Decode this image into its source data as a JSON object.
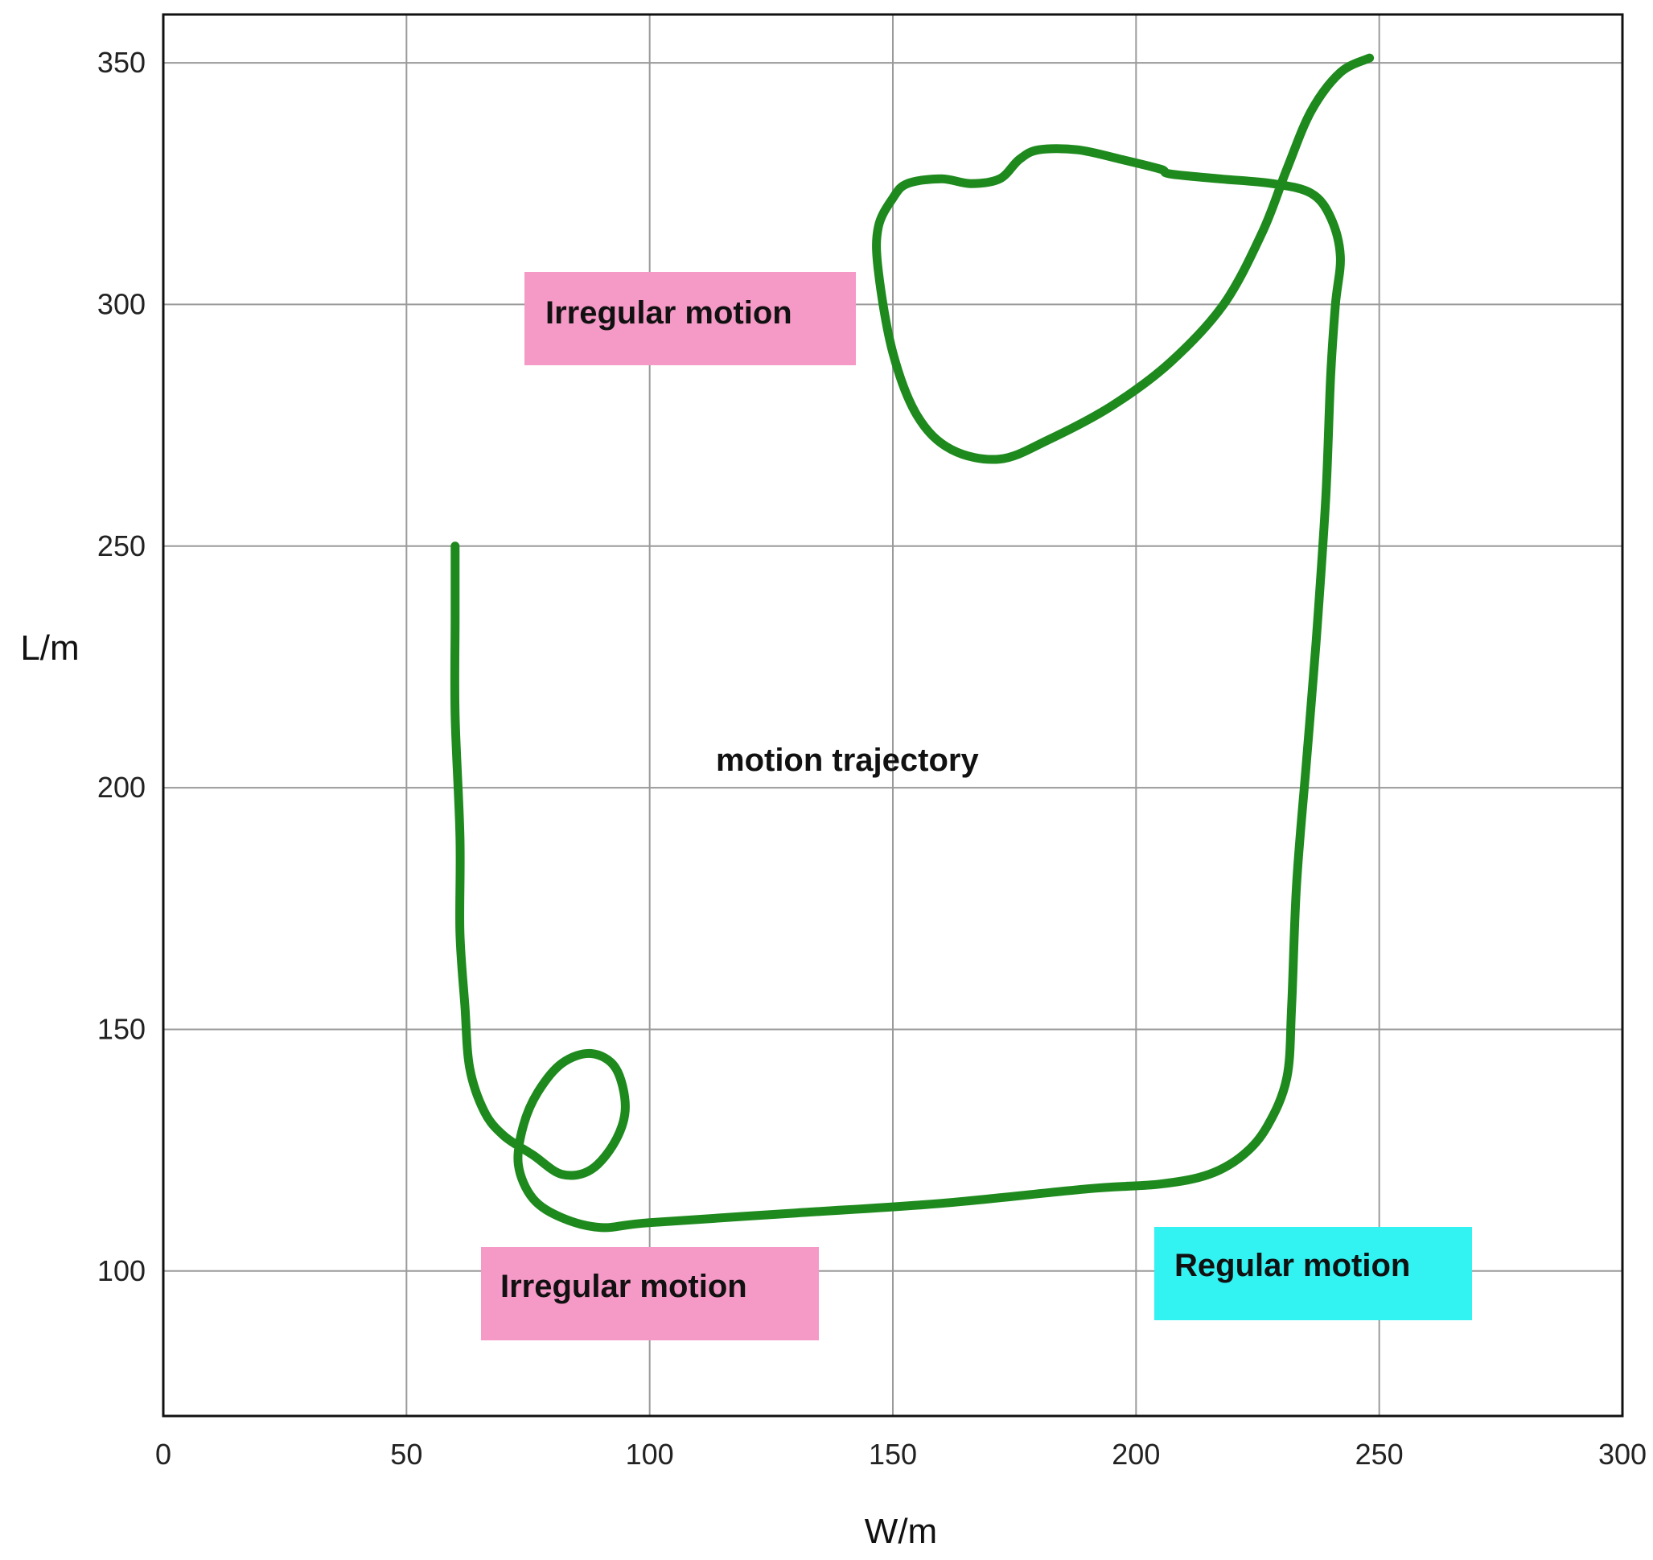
{
  "chart_data": {
    "type": "line",
    "title": "",
    "xlabel": "W/m",
    "ylabel": "L/m",
    "xlim": [
      0,
      300
    ],
    "ylim": [
      70,
      360
    ],
    "xticks": [
      0,
      50,
      100,
      150,
      200,
      250,
      300
    ],
    "yticks": [
      100,
      150,
      200,
      250,
      300,
      350
    ],
    "grid": true,
    "series": [
      {
        "color": "#1e8a1e",
        "x": [
          60,
          60,
          60,
          61,
          61,
          62,
          63,
          66,
          70,
          76,
          82,
          88,
          93,
          95,
          93,
          88,
          82,
          77,
          74,
          73,
          76,
          82,
          90,
          100,
          130,
          160,
          190,
          205,
          215,
          222,
          227,
          231,
          232,
          233,
          235,
          237,
          239,
          240,
          241,
          242,
          240,
          236,
          228,
          217,
          207,
          205,
          197,
          188,
          180,
          176,
          172,
          166,
          160,
          153,
          150,
          147,
          147,
          150,
          155,
          162,
          172,
          182,
          195,
          207,
          218,
          226,
          231,
          236,
          242,
          248
        ],
        "y": [
          250,
          235,
          215,
          190,
          170,
          155,
          142,
          133,
          128,
          124,
          120,
          121,
          127,
          134,
          142,
          145,
          143,
          137,
          130,
          122,
          115,
          111,
          109,
          110,
          112,
          114,
          117,
          118,
          120,
          124,
          130,
          140,
          155,
          180,
          205,
          230,
          260,
          285,
          300,
          310,
          318,
          323,
          325,
          326,
          327,
          328,
          330,
          332,
          332,
          330,
          326,
          325,
          326,
          325,
          322,
          316,
          307,
          290,
          277,
          270,
          268,
          272,
          279,
          288,
          300,
          315,
          328,
          340,
          348,
          351
        ]
      }
    ],
    "annotations": [
      {
        "text": "Irregular motion",
        "color": "#f59ac6"
      },
      {
        "text": "Irregular motion",
        "color": "#f59ac6"
      },
      {
        "text": "Regular motion",
        "color": "#33f2f2"
      },
      {
        "text": "motion trajectory",
        "color": ""
      }
    ]
  }
}
